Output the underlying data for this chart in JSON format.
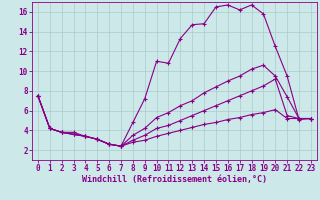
{
  "bg_color": "#cce8e8",
  "line_color": "#880088",
  "grid_color": "#aacccc",
  "xlim": [
    -0.5,
    23.5
  ],
  "ylim": [
    1,
    17
  ],
  "xticks": [
    0,
    1,
    2,
    3,
    4,
    5,
    6,
    7,
    8,
    9,
    10,
    11,
    12,
    13,
    14,
    15,
    16,
    17,
    18,
    19,
    20,
    21,
    22,
    23
  ],
  "yticks": [
    2,
    4,
    6,
    8,
    10,
    12,
    14,
    16
  ],
  "xlabel": "Windchill (Refroidissement éolien,°C)",
  "line1_x": [
    0,
    1,
    2,
    3,
    4,
    5,
    6,
    7,
    8,
    9,
    10,
    11,
    12,
    13,
    14,
    15,
    16,
    17,
    18,
    19,
    20,
    21,
    22,
    23
  ],
  "line1_y": [
    7.5,
    4.2,
    3.8,
    3.8,
    3.4,
    3.1,
    2.6,
    2.4,
    4.8,
    7.2,
    11.0,
    10.8,
    13.3,
    14.7,
    14.8,
    16.5,
    16.7,
    16.2,
    16.7,
    15.8,
    12.5,
    9.5,
    5.1,
    5.2
  ],
  "line2_x": [
    0,
    1,
    2,
    3,
    4,
    5,
    6,
    7,
    8,
    9,
    10,
    11,
    12,
    13,
    14,
    15,
    16,
    17,
    18,
    19,
    20,
    21,
    22,
    23
  ],
  "line2_y": [
    7.5,
    4.2,
    3.8,
    3.6,
    3.4,
    3.1,
    2.6,
    2.4,
    3.5,
    4.2,
    5.3,
    5.8,
    6.5,
    7.0,
    7.8,
    8.4,
    9.0,
    9.5,
    10.2,
    10.6,
    9.5,
    7.4,
    5.2,
    5.2
  ],
  "line3_x": [
    0,
    1,
    2,
    3,
    4,
    5,
    6,
    7,
    8,
    9,
    10,
    11,
    12,
    13,
    14,
    15,
    16,
    17,
    18,
    19,
    20,
    21,
    22,
    23
  ],
  "line3_y": [
    7.5,
    4.2,
    3.8,
    3.6,
    3.4,
    3.1,
    2.6,
    2.4,
    3.0,
    3.5,
    4.2,
    4.5,
    5.0,
    5.5,
    6.0,
    6.5,
    7.0,
    7.5,
    8.0,
    8.5,
    9.2,
    5.5,
    5.2,
    5.2
  ],
  "line4_x": [
    0,
    1,
    2,
    3,
    4,
    5,
    6,
    7,
    8,
    9,
    10,
    11,
    12,
    13,
    14,
    15,
    16,
    17,
    18,
    19,
    20,
    21,
    22,
    23
  ],
  "line4_y": [
    7.5,
    4.2,
    3.8,
    3.6,
    3.4,
    3.1,
    2.6,
    2.4,
    2.8,
    3.0,
    3.4,
    3.7,
    4.0,
    4.3,
    4.6,
    4.8,
    5.1,
    5.3,
    5.6,
    5.8,
    6.1,
    5.2,
    5.2,
    5.2
  ],
  "tick_fontsize": 5.5,
  "xlabel_fontsize": 6.0
}
